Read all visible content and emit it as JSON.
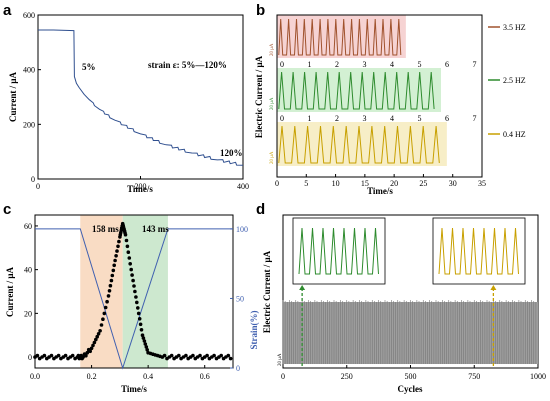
{
  "panels": {
    "a": "a",
    "b": "b",
    "c": "c",
    "d": "d"
  },
  "chart_data": [
    {
      "type": "line",
      "panel": "a",
      "xlabel": "Time/s",
      "ylabel": "Current / μA",
      "xlim": [
        0,
        400
      ],
      "ylim": [
        0,
        600
      ],
      "xticks": [
        0,
        200,
        400
      ],
      "yticks": [
        0,
        200,
        400,
        600
      ],
      "annotations": {
        "strain": "strain ε: 5%—120%",
        "start": "5%",
        "end": "120%"
      },
      "series": [
        {
          "color": "#2f4f8f",
          "x": [
            0,
            30,
            70,
            71,
            75,
            80,
            90,
            100,
            120,
            150,
            200,
            250,
            300,
            350,
            400
          ],
          "y": [
            545,
            545,
            543,
            375,
            350,
            335,
            310,
            290,
            255,
            215,
            165,
            125,
            95,
            70,
            50
          ]
        }
      ]
    },
    {
      "type": "line",
      "panel": "b",
      "xlabel": "Time/s",
      "ylabel": "Electric Current / μA",
      "xlim": [
        0,
        35
      ],
      "xticks": [
        0,
        5,
        10,
        15,
        20,
        25,
        30,
        35
      ],
      "scale_label": "20 μA",
      "series": [
        {
          "name": "3.5 HZ",
          "color": "#a0522d",
          "band": "#f6d3d3",
          "x_end": 22,
          "n_peaks": 16,
          "cycle_labels": []
        },
        {
          "name": "2.5 HZ",
          "color": "#2e8b2e",
          "band": "#d3f0d3",
          "x_end": 28,
          "n_peaks": 14,
          "cycle_labels": [
            "0",
            "1",
            "2",
            "3",
            "4",
            "5",
            "6",
            "7"
          ]
        },
        {
          "name": "0.4 HZ",
          "color": "#c8a000",
          "band": "#f7eec7",
          "x_end": 29,
          "n_peaks": 13,
          "cycle_labels": [
            "0",
            "1",
            "2",
            "3",
            "4",
            "5",
            "6",
            "7"
          ]
        }
      ]
    },
    {
      "type": "line",
      "panel": "c",
      "xlabel": "Time/s",
      "ylabel": "Current / μA",
      "ylabel_right": "Strain(%)",
      "xlim": [
        0,
        0.7
      ],
      "ylim": [
        -5,
        65
      ],
      "ylim_right": [
        0,
        110
      ],
      "xticks": [
        0.0,
        0.2,
        0.4,
        0.6
      ],
      "yticks": [
        0,
        20,
        40,
        60
      ],
      "yticks_right": [
        0,
        50,
        100
      ],
      "annotations": {
        "rise": "158 ms",
        "fall": "143 ms"
      },
      "series": [
        {
          "name": "Current",
          "color": "#000000",
          "x": [
            0,
            0.05,
            0.1,
            0.15,
            0.17,
            0.2,
            0.23,
            0.26,
            0.28,
            0.3,
            0.31,
            0.32,
            0.34,
            0.36,
            0.38,
            0.4,
            0.45,
            0.5,
            0.55,
            0.6,
            0.65,
            0.7
          ],
          "y": [
            0,
            0,
            0,
            0,
            0,
            4,
            12,
            28,
            42,
            55,
            61,
            56,
            40,
            25,
            10,
            2,
            0,
            0,
            0,
            0,
            0,
            0
          ]
        },
        {
          "name": "Strain",
          "color": "#4060b0",
          "x": [
            0,
            0.16,
            0.31,
            0.47,
            0.7
          ],
          "y": [
            100,
            100,
            0,
            100,
            100
          ]
        }
      ]
    },
    {
      "type": "line",
      "panel": "d",
      "xlabel": "Cycles",
      "ylabel": "Electric Current / μA",
      "xlim": [
        0,
        1000
      ],
      "xticks": [
        0,
        250,
        500,
        750,
        1000
      ],
      "scale_label": "20 μA",
      "insets": [
        {
          "color": "#2e8b2e",
          "cycle": 75
        },
        {
          "color": "#c8a000",
          "cycle": 825
        }
      ],
      "series": [
        {
          "color": "#808080",
          "n_cycles": 1000
        }
      ]
    }
  ]
}
